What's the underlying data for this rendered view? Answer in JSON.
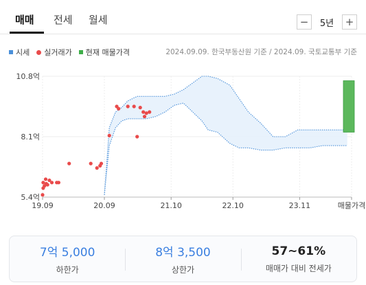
{
  "tabs": [
    {
      "label": "매매",
      "active": true
    },
    {
      "label": "전세",
      "active": false
    },
    {
      "label": "월세",
      "active": false
    }
  ],
  "range": {
    "minus": "−",
    "label": "5년",
    "plus": "+"
  },
  "legend": [
    {
      "label": "시세",
      "color": "#4a90d9",
      "shape": "square"
    },
    {
      "label": "실거래가",
      "color": "#e94b4b",
      "shape": "dot"
    },
    {
      "label": "현재 매물가격",
      "color": "#3fae49",
      "shape": "square"
    }
  ],
  "source": "2024.09.09. 한국부동산원 기준 / 2024.09. 국토교통부 기준",
  "chart_data": {
    "type": "line",
    "y_tick_labels": [
      "10.8억",
      "8.1억",
      "5.4억"
    ],
    "y_ticks": [
      10.8,
      8.1,
      5.4
    ],
    "ylim": [
      5.4,
      10.8
    ],
    "xlim": [
      2019.67,
      2024.67
    ],
    "x_tick_labels": [
      "19.09",
      "20.09",
      "21.10",
      "22.10",
      "23.11",
      "매물가격"
    ],
    "x_ticks": [
      2019.67,
      2020.67,
      2021.75,
      2022.75,
      2023.83,
      2024.67
    ],
    "grid": true,
    "series": [
      {
        "name": "시세",
        "kind": "band",
        "color": "#4a90d9",
        "x": [
          2020.67,
          2020.75,
          2020.85,
          2020.95,
          2021.05,
          2021.2,
          2021.35,
          2021.5,
          2021.65,
          2021.8,
          2021.95,
          2022.1,
          2022.25,
          2022.35,
          2022.5,
          2022.7,
          2022.85,
          2023.0,
          2023.2,
          2023.4,
          2023.6,
          2023.8,
          2024.0,
          2024.2,
          2024.4,
          2024.6
        ],
        "low": [
          5.5,
          7.7,
          8.5,
          8.8,
          8.9,
          8.9,
          8.9,
          9.0,
          9.2,
          9.5,
          9.6,
          9.2,
          8.8,
          8.4,
          8.3,
          7.8,
          7.6,
          7.6,
          7.5,
          7.5,
          7.6,
          7.6,
          7.6,
          7.7,
          7.7,
          7.7
        ],
        "high": [
          5.5,
          8.5,
          9.2,
          9.4,
          9.7,
          9.9,
          9.9,
          9.9,
          9.9,
          10.0,
          10.2,
          10.5,
          10.8,
          10.8,
          10.7,
          10.4,
          9.8,
          9.2,
          8.7,
          8.1,
          8.1,
          8.4,
          8.4,
          8.4,
          8.4,
          8.4
        ]
      },
      {
        "name": "실거래가",
        "kind": "scatter",
        "color": "#e94b4b",
        "points": [
          [
            2019.67,
            5.5
          ],
          [
            2019.68,
            5.8
          ],
          [
            2019.68,
            6.05
          ],
          [
            2019.7,
            5.9
          ],
          [
            2019.72,
            6.2
          ],
          [
            2019.73,
            6.0
          ],
          [
            2019.75,
            5.95
          ],
          [
            2019.78,
            6.15
          ],
          [
            2019.82,
            6.05
          ],
          [
            2019.9,
            6.05
          ],
          [
            2019.93,
            6.05
          ],
          [
            2020.1,
            6.9
          ],
          [
            2020.45,
            6.9
          ],
          [
            2020.55,
            6.7
          ],
          [
            2020.6,
            6.8
          ],
          [
            2020.62,
            6.9
          ],
          [
            2020.75,
            8.15
          ],
          [
            2020.87,
            9.45
          ],
          [
            2020.9,
            9.35
          ],
          [
            2021.05,
            9.45
          ],
          [
            2021.15,
            9.45
          ],
          [
            2021.2,
            8.1
          ],
          [
            2021.25,
            9.4
          ],
          [
            2021.3,
            9.2
          ],
          [
            2021.32,
            9.0
          ],
          [
            2021.35,
            9.15
          ],
          [
            2021.4,
            9.2
          ]
        ]
      }
    ],
    "listing": {
      "name": "현재 매물가격",
      "low": 8.3,
      "high": 10.6,
      "color": "#5cb85c"
    }
  },
  "summary": [
    {
      "value": "7억 5,000",
      "label": "하한가",
      "style": "accent"
    },
    {
      "value": "8억 3,500",
      "label": "상한가",
      "style": "accent"
    },
    {
      "value": "57~61%",
      "label": "매매가 대비 전세가",
      "style": "dark"
    }
  ]
}
